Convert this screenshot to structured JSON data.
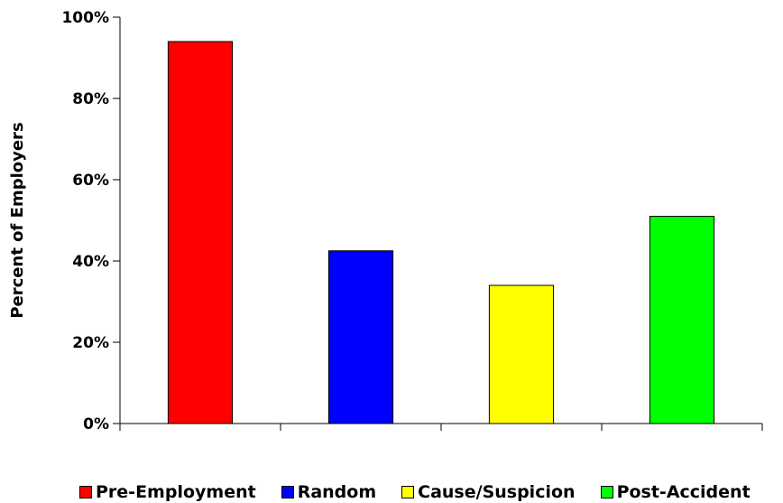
{
  "chart_data": {
    "type": "bar",
    "categories": [
      "Pre-Employment",
      "Random",
      "Cause/Suspicion",
      "Post-Accident"
    ],
    "values": [
      94,
      42.5,
      34,
      51
    ],
    "colors": [
      "#ff0000",
      "#0000ff",
      "#ffff00",
      "#00ff00"
    ],
    "ylabel": "Percent of Employers",
    "ylim": [
      0,
      100
    ],
    "yticks": [
      "0%",
      "20%",
      "40%",
      "60%",
      "80%",
      "100%"
    ],
    "ytick_values": [
      0,
      20,
      40,
      60,
      80,
      100
    ],
    "grid": false,
    "legend_position": "bottom"
  }
}
